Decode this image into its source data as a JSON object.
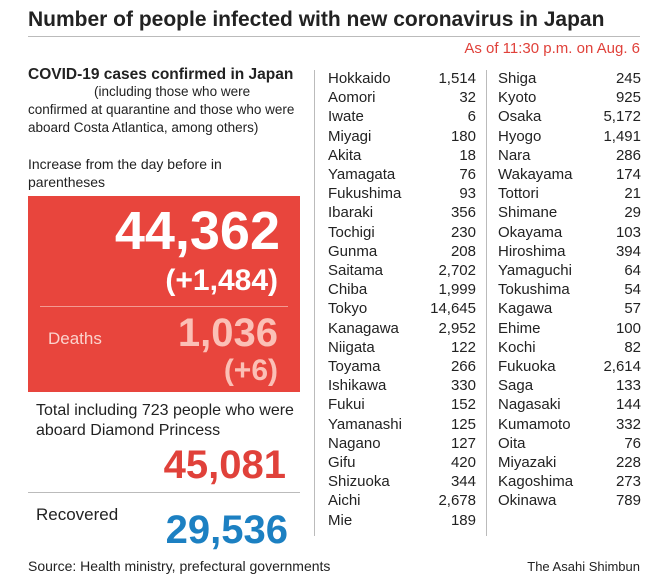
{
  "header": {
    "title": "Number of people infected with new coronavirus in Japan",
    "as_of": "As of 11:30 p.m. on Aug. 6"
  },
  "summary": {
    "heading": "COVID-19 cases confirmed in Japan",
    "note": "(including those who were confirmed at quarantine and those who were aboard Costa Atlantica, among others)",
    "increase_note": "Increase from the day before in parentheses",
    "cases": "44,362",
    "cases_increase": "(+1,484)",
    "deaths_label": "Deaths",
    "deaths": "1,036",
    "deaths_increase": "(+6)",
    "total_label": "Total including 723 people who were aboard Diamond Princess",
    "total": "45,081",
    "recovered_label": "Recovered",
    "recovered": "29,536"
  },
  "table": {
    "columns": [
      [
        [
          "Hokkaido",
          "1,514"
        ],
        [
          "Aomori",
          "32"
        ],
        [
          "Iwate",
          "6"
        ],
        [
          "Miyagi",
          "180"
        ],
        [
          "Akita",
          "18"
        ],
        [
          "Yamagata",
          "76"
        ],
        [
          "Fukushima",
          "93"
        ],
        [
          "Ibaraki",
          "356"
        ],
        [
          "Tochigi",
          "230"
        ],
        [
          "Gunma",
          "208"
        ],
        [
          "Saitama",
          "2,702"
        ],
        [
          "Chiba",
          "1,999"
        ],
        [
          "Tokyo",
          "14,645"
        ],
        [
          "Kanagawa",
          "2,952"
        ],
        [
          "Niigata",
          "122"
        ],
        [
          "Toyama",
          "266"
        ],
        [
          "Ishikawa",
          "330"
        ],
        [
          "Fukui",
          "152"
        ],
        [
          "Yamanashi",
          "125"
        ],
        [
          "Nagano",
          "127"
        ],
        [
          "Gifu",
          "420"
        ],
        [
          "Shizuoka",
          "344"
        ],
        [
          "Aichi",
          "2,678"
        ],
        [
          "Mie",
          "189"
        ]
      ],
      [
        [
          "Shiga",
          "245"
        ],
        [
          "Kyoto",
          "925"
        ],
        [
          "Osaka",
          "5,172"
        ],
        [
          "Hyogo",
          "1,491"
        ],
        [
          "Nara",
          "286"
        ],
        [
          "Wakayama",
          "174"
        ],
        [
          "Tottori",
          "21"
        ],
        [
          "Shimane",
          "29"
        ],
        [
          "Okayama",
          "103"
        ],
        [
          "Hiroshima",
          "394"
        ],
        [
          "Yamaguchi",
          "64"
        ],
        [
          "Tokushima",
          "54"
        ],
        [
          "Kagawa",
          "57"
        ],
        [
          "Ehime",
          "100"
        ],
        [
          "Kochi",
          "82"
        ],
        [
          "Fukuoka",
          "2,614"
        ],
        [
          "Saga",
          "133"
        ],
        [
          "Nagasaki",
          "144"
        ],
        [
          "Kumamoto",
          "332"
        ],
        [
          "Oita",
          "76"
        ],
        [
          "Miyazaki",
          "228"
        ],
        [
          "Kagoshima",
          "273"
        ],
        [
          "Okinawa",
          "789"
        ]
      ]
    ]
  },
  "footer": {
    "source": "Source: Health ministry, prefectural governments",
    "credit": "The Asahi Shimbun"
  }
}
